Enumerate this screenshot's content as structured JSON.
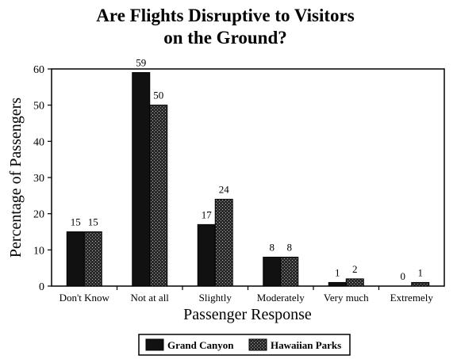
{
  "chart_data": {
    "type": "bar",
    "title": [
      "Are Flights Disruptive to Visitors",
      "on the Ground?"
    ],
    "xlabel": "Passenger Response",
    "ylabel": "Percentage of Passengers",
    "ylim": [
      0,
      60
    ],
    "yticks": [
      "0",
      "10",
      "20",
      "30",
      "40",
      "50",
      "60"
    ],
    "categories": [
      "Don't Know",
      "Not at all",
      "Slightly",
      "Moderately",
      "Very much",
      "Extremely"
    ],
    "series": [
      {
        "name": "Grand Canyon",
        "values": [
          15,
          59,
          17,
          8,
          1,
          0
        ],
        "color": "#111111",
        "pattern": "solid"
      },
      {
        "name": "Hawaiian Parks",
        "values": [
          15,
          50,
          24,
          8,
          2,
          1
        ],
        "color": "#222222",
        "pattern": "stipple"
      }
    ],
    "legend_position": "bottom",
    "grid": false
  }
}
